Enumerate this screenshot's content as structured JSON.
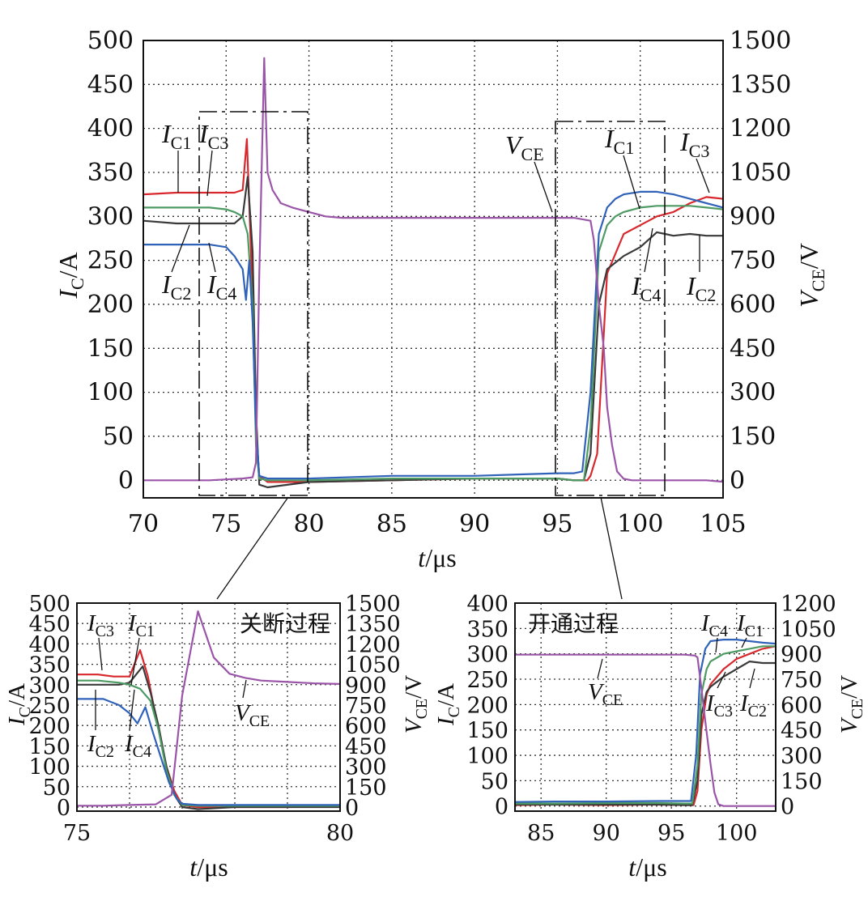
{
  "colors": {
    "IC1": "#d8282e",
    "IC2": "#3a3a3a",
    "IC3": "#4d9a63",
    "IC4": "#2f62b8",
    "VCE": "#9a55a8"
  },
  "chart_data": [
    {
      "id": "main",
      "type": "line",
      "xlabel": "t/μs",
      "ylabel_left": "IC/A",
      "ylabel_right": "VCE/V",
      "xlim": [
        70,
        105
      ],
      "ylim_left": [
        -20,
        500
      ],
      "ylim_right": [
        -60,
        1500
      ],
      "xticks": [
        70,
        75,
        80,
        85,
        90,
        95,
        100,
        105
      ],
      "yticks_left": [
        0,
        50,
        100,
        150,
        200,
        250,
        300,
        350,
        400,
        450,
        500
      ],
      "yticks_right": [
        0,
        150,
        300,
        450,
        600,
        750,
        900,
        1050,
        1200,
        1350,
        1500
      ],
      "grid": true,
      "series": [
        {
          "name": "IC1",
          "axis": "left",
          "x": [
            70,
            72,
            74,
            75.5,
            76,
            76.25,
            76.5,
            76.8,
            77,
            77.5,
            80,
            85,
            90,
            95,
            96,
            96.8,
            97,
            97.4,
            98,
            99,
            100,
            101,
            102,
            103,
            104,
            105
          ],
          "y": [
            325,
            327,
            327,
            327,
            330,
            388,
            260,
            60,
            5,
            -2,
            -2,
            0,
            2,
            2,
            0,
            0,
            5,
            30,
            235,
            280,
            290,
            300,
            305,
            315,
            322,
            320
          ]
        },
        {
          "name": "IC2",
          "axis": "left",
          "x": [
            70,
            72,
            74,
            75.5,
            76,
            76.3,
            76.6,
            76.8,
            77,
            77.5,
            80,
            85,
            90,
            95,
            96,
            96.6,
            97,
            97.5,
            98,
            99,
            100,
            101,
            101.5,
            102,
            103,
            104,
            105
          ],
          "y": [
            295,
            292,
            292,
            292,
            300,
            345,
            260,
            80,
            -5,
            -8,
            -2,
            0,
            2,
            2,
            0,
            0,
            30,
            200,
            240,
            255,
            265,
            282,
            280,
            278,
            280,
            278,
            278
          ]
        },
        {
          "name": "IC3",
          "axis": "left",
          "x": [
            70,
            72,
            74,
            75,
            75.5,
            76,
            76.3,
            76.6,
            76.8,
            77,
            77.5,
            80,
            85,
            90,
            95,
            96,
            96.6,
            97,
            97.5,
            98,
            98.5,
            99,
            100,
            101,
            102,
            103,
            104,
            105
          ],
          "y": [
            310,
            310,
            310,
            308,
            305,
            300,
            280,
            200,
            40,
            2,
            0,
            0,
            2,
            2,
            2,
            0,
            0,
            60,
            260,
            290,
            300,
            305,
            310,
            312,
            312,
            312,
            310,
            308
          ]
        },
        {
          "name": "IC4",
          "axis": "left",
          "x": [
            70,
            72,
            74,
            75,
            75.5,
            76,
            76.2,
            76.4,
            76.6,
            76.8,
            77,
            77.5,
            80,
            85,
            90,
            95,
            96,
            96.5,
            97,
            97.5,
            98,
            98.5,
            99,
            100,
            101,
            102,
            103,
            104,
            105
          ],
          "y": [
            268,
            268,
            268,
            265,
            255,
            240,
            205,
            250,
            180,
            60,
            5,
            2,
            2,
            5,
            5,
            8,
            8,
            10,
            100,
            280,
            310,
            320,
            325,
            328,
            328,
            325,
            320,
            315,
            310
          ]
        },
        {
          "name": "VCE",
          "axis": "right",
          "x": [
            70,
            72,
            74,
            75,
            76,
            76.6,
            76.8,
            77,
            77.3,
            77.5,
            77.8,
            78.3,
            79,
            80,
            81,
            82,
            85,
            90,
            95,
            96,
            97,
            97.2,
            97.5,
            97.8,
            98,
            98.3,
            98.6,
            99,
            99.5,
            100,
            101,
            102,
            103,
            104,
            105
          ],
          "y": [
            0,
            0,
            0,
            3,
            6,
            10,
            60,
            700,
            1440,
            1050,
            990,
            945,
            930,
            915,
            900,
            895,
            895,
            895,
            895,
            895,
            885,
            820,
            600,
            450,
            250,
            120,
            30,
            5,
            0,
            0,
            0,
            0,
            0,
            0,
            -5
          ]
        }
      ]
    },
    {
      "id": "turnoff",
      "type": "line",
      "title": "关断过程",
      "xlabel": "t/μs",
      "ylabel_left": "IC/A",
      "ylabel_right": "VCE/V",
      "xlim": [
        75,
        80
      ],
      "ylim_left": [
        -10,
        500
      ],
      "ylim_right": [
        -30,
        1500
      ],
      "xticks": [
        75,
        80
      ],
      "yticks_left": [
        0,
        50,
        100,
        150,
        200,
        250,
        300,
        350,
        400,
        450,
        500
      ],
      "yticks_right": [
        0,
        150,
        300,
        450,
        600,
        750,
        900,
        1050,
        1200,
        1350,
        1500
      ],
      "grid": true,
      "series": [
        {
          "name": "IC1",
          "axis": "left",
          "x": [
            75,
            75.4,
            75.7,
            76,
            76.2,
            76.35,
            76.5,
            76.7,
            76.85,
            77,
            77.3,
            78,
            79,
            80
          ],
          "y": [
            325,
            325,
            320,
            320,
            385,
            320,
            220,
            100,
            40,
            5,
            0,
            0,
            0,
            2
          ]
        },
        {
          "name": "IC2",
          "axis": "left",
          "x": [
            75,
            75.4,
            75.8,
            76,
            76.25,
            76.4,
            76.55,
            76.7,
            76.85,
            77,
            77.3,
            78,
            79,
            80
          ],
          "y": [
            300,
            300,
            300,
            305,
            345,
            280,
            200,
            100,
            30,
            0,
            -5,
            0,
            0,
            0
          ]
        },
        {
          "name": "IC3",
          "axis": "left",
          "x": [
            75,
            75.4,
            75.8,
            76,
            76.2,
            76.4,
            76.55,
            76.7,
            76.85,
            77,
            77.3,
            78,
            79,
            80
          ],
          "y": [
            310,
            310,
            305,
            300,
            290,
            260,
            190,
            90,
            30,
            5,
            3,
            3,
            3,
            3
          ]
        },
        {
          "name": "IC4",
          "axis": "left",
          "x": [
            75,
            75.5,
            75.8,
            76,
            76.15,
            76.3,
            76.45,
            76.6,
            76.75,
            76.9,
            77,
            77.3,
            78,
            79,
            80
          ],
          "y": [
            265,
            265,
            250,
            230,
            205,
            245,
            180,
            120,
            60,
            20,
            8,
            5,
            5,
            5,
            5
          ]
        },
        {
          "name": "VCE",
          "axis": "right",
          "x": [
            75,
            75.5,
            76,
            76.5,
            76.8,
            77,
            77.3,
            77.6,
            77.9,
            78.2,
            78.5,
            79,
            79.5,
            80
          ],
          "y": [
            10,
            10,
            15,
            20,
            90,
            820,
            1440,
            1100,
            980,
            950,
            930,
            920,
            910,
            905
          ]
        }
      ]
    },
    {
      "id": "turnon",
      "type": "line",
      "title": "开通过程",
      "xlabel": "t/μs",
      "ylabel_left": "IC/A",
      "ylabel_right": "VCE/V",
      "xlim": [
        83,
        103
      ],
      "ylim_left": [
        -10,
        400
      ],
      "ylim_right": [
        -30,
        1200
      ],
      "xticks": [
        85,
        90,
        95,
        100
      ],
      "yticks_left": [
        0,
        50,
        100,
        150,
        200,
        250,
        300,
        350,
        400
      ],
      "yticks_right": [
        0,
        150,
        300,
        450,
        600,
        750,
        900,
        1050,
        1200
      ],
      "grid": true,
      "series": [
        {
          "name": "IC1",
          "axis": "left",
          "x": [
            83,
            86,
            90,
            94,
            96,
            96.7,
            97,
            97.3,
            97.7,
            98,
            99,
            100,
            101,
            102,
            103
          ],
          "y": [
            2,
            3,
            2,
            3,
            2,
            2,
            30,
            150,
            220,
            240,
            270,
            290,
            300,
            310,
            315
          ]
        },
        {
          "name": "IC2",
          "axis": "left",
          "x": [
            83,
            86,
            90,
            94,
            96,
            96.6,
            97,
            97.3,
            97.7,
            98,
            99,
            100,
            101,
            102,
            103
          ],
          "y": [
            3,
            3,
            3,
            3,
            2,
            2,
            50,
            180,
            225,
            235,
            255,
            270,
            285,
            282,
            282
          ]
        },
        {
          "name": "IC3",
          "axis": "left",
          "x": [
            83,
            86,
            90,
            94,
            96,
            96.6,
            97,
            97.3,
            97.7,
            98,
            99,
            100,
            101,
            102,
            103
          ],
          "y": [
            5,
            5,
            6,
            6,
            5,
            5,
            80,
            220,
            270,
            285,
            300,
            305,
            310,
            315,
            315
          ]
        },
        {
          "name": "IC4",
          "axis": "left",
          "x": [
            83,
            86,
            90,
            94,
            96,
            96.5,
            96.9,
            97.2,
            97.6,
            98,
            99,
            100,
            101,
            102,
            103
          ],
          "y": [
            8,
            9,
            9,
            10,
            10,
            10,
            100,
            260,
            310,
            325,
            328,
            328,
            325,
            322,
            320
          ]
        },
        {
          "name": "VCE",
          "axis": "right",
          "x": [
            83,
            86,
            90,
            94,
            96,
            96.8,
            97,
            97.3,
            97.6,
            98,
            98.3,
            98.6,
            99,
            100,
            101,
            102,
            103
          ],
          "y": [
            895,
            895,
            895,
            895,
            895,
            890,
            880,
            700,
            500,
            250,
            80,
            10,
            0,
            0,
            0,
            0,
            0
          ]
        }
      ]
    }
  ],
  "annotations": {
    "main": [
      "IC1",
      "IC3",
      "IC2",
      "IC4",
      "VCE",
      "IC1",
      "IC3",
      "IC4",
      "IC2"
    ],
    "turnoff": [
      "IC3",
      "IC1",
      "IC2",
      "IC4",
      "VCE"
    ],
    "turnon": [
      "IC4",
      "IC1",
      "VCE",
      "IC3",
      "IC2"
    ]
  }
}
